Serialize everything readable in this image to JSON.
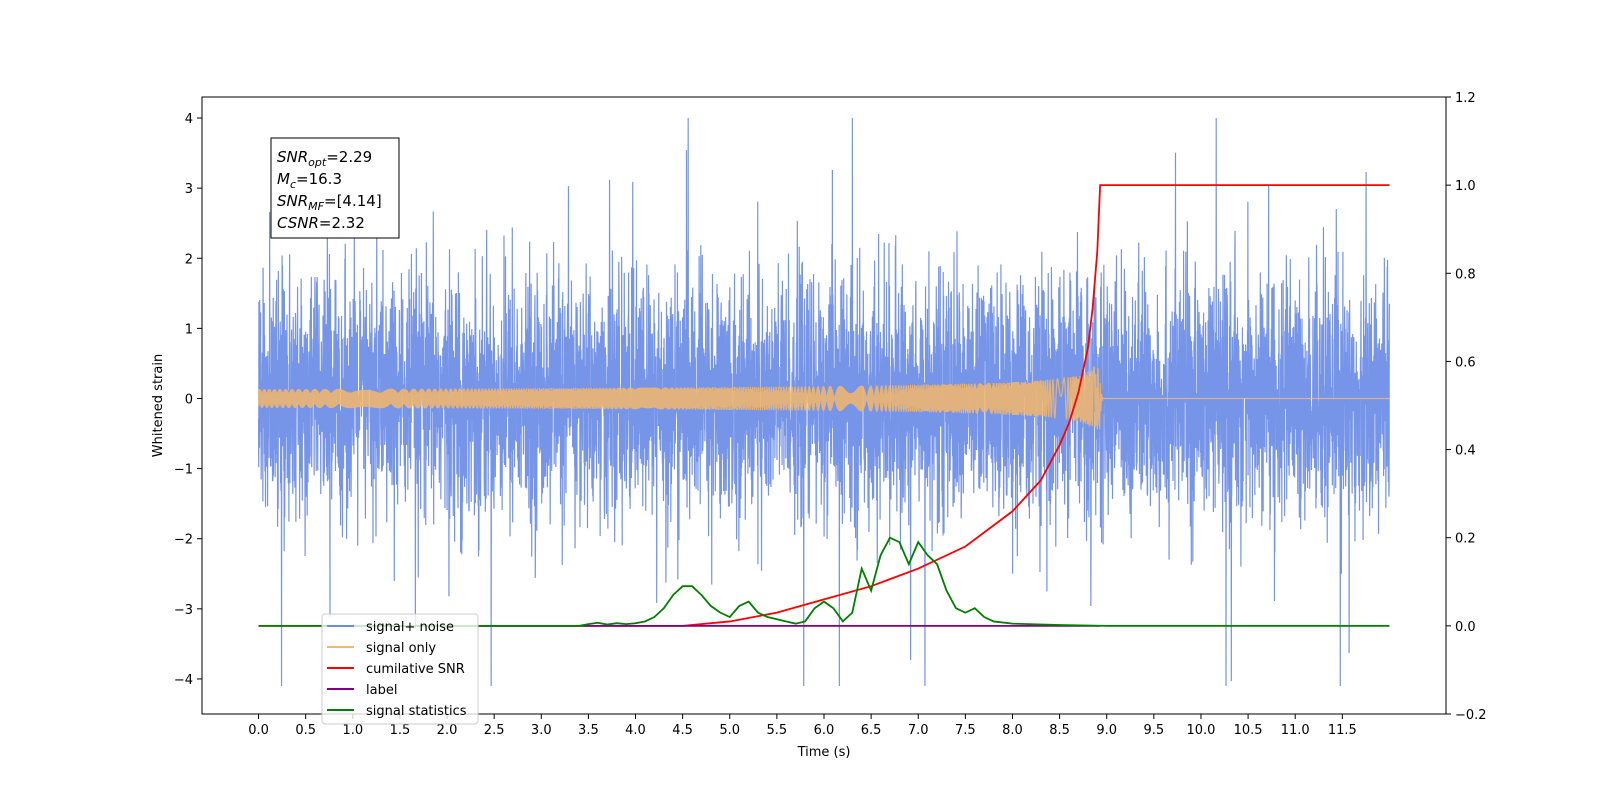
{
  "chart_data": {
    "type": "line",
    "xlabel": "Time (s)",
    "ylabel": "Whitened strain",
    "xlim": [
      -0.6,
      12.6
    ],
    "ylim": [
      -4.5,
      4.3
    ],
    "y2lim": [
      -0.2,
      1.2
    ],
    "x_ticks": [
      "0.0",
      "0.5",
      "1.0",
      "1.5",
      "2.0",
      "2.5",
      "3.0",
      "3.5",
      "4.0",
      "4.5",
      "5.0",
      "5.5",
      "6.0",
      "6.5",
      "7.0",
      "7.5",
      "8.0",
      "8.5",
      "9.0",
      "9.5",
      "10.0",
      "10.5",
      "11.0",
      "11.5"
    ],
    "y_ticks": [
      "4",
      "3",
      "2",
      "1",
      "0",
      "−1",
      "−2",
      "−3",
      "−4"
    ],
    "y2_ticks": [
      "1.2",
      "1.0",
      "0.8",
      "0.6",
      "0.4",
      "0.2",
      "0.0",
      "−0.2"
    ],
    "grid": false,
    "legend_position": "lower-left",
    "annotation": {
      "lines": [
        {
          "base": "SNR",
          "sub": "opt",
          "value": "=2.29"
        },
        {
          "base": "M",
          "sub": "c",
          "value": "=16.3"
        },
        {
          "base": "SNR",
          "sub": "MF",
          "value": "=[4.14]"
        },
        {
          "base": "CSNR",
          "sub": "",
          "value": "=2.32"
        }
      ]
    },
    "series": [
      {
        "name": "signal+ noise",
        "color": "#6a8be6",
        "axis": "left",
        "kind": "noise",
        "x_range": [
          0.0,
          12.0
        ],
        "amplitude_range": [
          -4.1,
          4.0
        ]
      },
      {
        "name": "signal only",
        "color": "#f5b76a",
        "axis": "left",
        "kind": "chirp",
        "x_range": [
          0.0,
          12.0
        ],
        "merger_time": 8.93,
        "peak_amplitude": 0.45
      },
      {
        "name": "cumilative SNR",
        "color": "#ff0000",
        "axis": "right",
        "x": [
          0.0,
          4.5,
          5.0,
          5.5,
          6.0,
          6.5,
          7.0,
          7.5,
          8.0,
          8.3,
          8.5,
          8.6,
          8.7,
          8.8,
          8.85,
          8.9,
          8.93,
          9.0,
          12.0
        ],
        "y": [
          0.0,
          0.0,
          0.01,
          0.03,
          0.06,
          0.09,
          0.13,
          0.18,
          0.26,
          0.33,
          0.41,
          0.46,
          0.53,
          0.63,
          0.72,
          0.85,
          1.0,
          1.0,
          1.0
        ]
      },
      {
        "name": "label",
        "color": "#800080",
        "axis": "right",
        "x": [
          1.5,
          8.93
        ],
        "y": [
          0.0,
          0.0
        ]
      },
      {
        "name": "signal statistics",
        "color": "#008000",
        "axis": "right",
        "x": [
          0.0,
          3.4,
          3.5,
          3.6,
          3.7,
          3.8,
          3.9,
          4.0,
          4.1,
          4.2,
          4.3,
          4.4,
          4.5,
          4.6,
          4.7,
          4.8,
          4.9,
          5.0,
          5.1,
          5.2,
          5.3,
          5.4,
          5.5,
          5.6,
          5.7,
          5.8,
          5.9,
          6.0,
          6.1,
          6.2,
          6.3,
          6.4,
          6.5,
          6.6,
          6.7,
          6.8,
          6.9,
          7.0,
          7.1,
          7.2,
          7.3,
          7.4,
          7.5,
          7.6,
          7.7,
          7.8,
          8.0,
          8.5,
          9.0,
          12.0
        ],
        "y": [
          0.0,
          0.0,
          0.004,
          0.007,
          0.003,
          0.006,
          0.004,
          0.006,
          0.01,
          0.02,
          0.04,
          0.07,
          0.09,
          0.09,
          0.07,
          0.045,
          0.03,
          0.02,
          0.045,
          0.055,
          0.03,
          0.02,
          0.015,
          0.01,
          0.005,
          0.01,
          0.04,
          0.055,
          0.04,
          0.01,
          0.03,
          0.13,
          0.08,
          0.16,
          0.2,
          0.19,
          0.14,
          0.19,
          0.16,
          0.14,
          0.08,
          0.04,
          0.03,
          0.04,
          0.02,
          0.01,
          0.005,
          0.002,
          0.0,
          0.0
        ]
      }
    ],
    "legend_entries": [
      {
        "label": "signal+ noise",
        "color": "#6a8be6"
      },
      {
        "label": "signal only",
        "color": "#f5b76a"
      },
      {
        "label": "cumilative SNR",
        "color": "#ff0000"
      },
      {
        "label": "label",
        "color": "#800080"
      },
      {
        "label": "signal statistics",
        "color": "#008000"
      }
    ]
  }
}
